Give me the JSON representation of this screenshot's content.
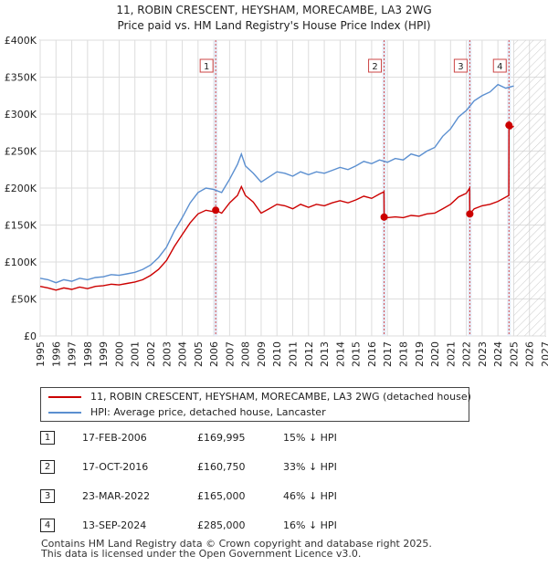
{
  "title_line1": "11, ROBIN CRESCENT, HEYSHAM, MORECAMBE, LA3 2WG",
  "title_line2": "Price paid vs. HM Land Registry's House Price Index (HPI)",
  "colors": {
    "property": "#cc0000",
    "hpi": "#5b8fd0",
    "marker": "#d34a4a"
  },
  "legend": {
    "property_label": "11, ROBIN CRESCENT, HEYSHAM, MORECAMBE, LA3 2WG (detached house)",
    "hpi_label": "HPI: Average price, detached house, Lancaster"
  },
  "sales": [
    {
      "num": "1",
      "date": "17-FEB-2006",
      "price": "£169,995",
      "hpi": "15% ↓ HPI"
    },
    {
      "num": "2",
      "date": "17-OCT-2016",
      "price": "£160,750",
      "hpi": "33% ↓ HPI"
    },
    {
      "num": "3",
      "date": "23-MAR-2022",
      "price": "£165,000",
      "hpi": "46% ↓ HPI"
    },
    {
      "num": "4",
      "date": "13-SEP-2024",
      "price": "£285,000",
      "hpi": "16% ↓ HPI"
    }
  ],
  "footer": {
    "line1": "Contains HM Land Registry data © Crown copyright and database right 2025.",
    "line2": "This data is licensed under the Open Government Licence v3.0."
  },
  "chart_data": {
    "type": "line",
    "title": "11, ROBIN CRESCENT, HEYSHAM, MORECAMBE, LA3 2WG — Price paid vs. HM Land Registry's House Price Index (HPI)",
    "xlabel": "",
    "ylabel": "",
    "xlim": [
      1995,
      2027
    ],
    "ylim": [
      0,
      400000
    ],
    "y_ticks": [
      0,
      50000,
      100000,
      150000,
      200000,
      250000,
      300000,
      350000,
      400000
    ],
    "y_tick_labels": [
      "£0",
      "£50K",
      "£100K",
      "£150K",
      "£200K",
      "£250K",
      "£300K",
      "£350K",
      "£400K"
    ],
    "x_ticks": [
      1995,
      1996,
      1997,
      1998,
      1999,
      2000,
      2001,
      2002,
      2003,
      2004,
      2005,
      2006,
      2007,
      2008,
      2009,
      2010,
      2011,
      2012,
      2013,
      2014,
      2015,
      2016,
      2017,
      2018,
      2019,
      2020,
      2021,
      2022,
      2023,
      2024,
      2025,
      2026,
      2027
    ],
    "grid": true,
    "forecast_from": 2025.0,
    "sales": [
      {
        "label": "1",
        "x": 2006.12,
        "y": 169995
      },
      {
        "label": "2",
        "x": 2016.79,
        "y": 160750
      },
      {
        "label": "3",
        "x": 2022.22,
        "y": 165000
      },
      {
        "label": "4",
        "x": 2024.7,
        "y": 285000
      }
    ],
    "series": [
      {
        "name": "HPI: Average price, detached house, Lancaster",
        "points": [
          [
            1995.0,
            78000
          ],
          [
            1995.5,
            76000
          ],
          [
            1996.0,
            72000
          ],
          [
            1996.5,
            76000
          ],
          [
            1997.0,
            74000
          ],
          [
            1997.5,
            78000
          ],
          [
            1998.0,
            76000
          ],
          [
            1998.5,
            79000
          ],
          [
            1999.0,
            80000
          ],
          [
            1999.5,
            83000
          ],
          [
            2000.0,
            82000
          ],
          [
            2000.5,
            84000
          ],
          [
            2001.0,
            86000
          ],
          [
            2001.5,
            90000
          ],
          [
            2002.0,
            96000
          ],
          [
            2002.5,
            106000
          ],
          [
            2003.0,
            120000
          ],
          [
            2003.5,
            142000
          ],
          [
            2004.0,
            160000
          ],
          [
            2004.5,
            180000
          ],
          [
            2005.0,
            194000
          ],
          [
            2005.5,
            200000
          ],
          [
            2006.0,
            198000
          ],
          [
            2006.5,
            194000
          ],
          [
            2007.0,
            212000
          ],
          [
            2007.5,
            232000
          ],
          [
            2007.75,
            246000
          ],
          [
            2008.0,
            230000
          ],
          [
            2008.5,
            220000
          ],
          [
            2009.0,
            208000
          ],
          [
            2009.5,
            215000
          ],
          [
            2010.0,
            222000
          ],
          [
            2010.5,
            220000
          ],
          [
            2011.0,
            216000
          ],
          [
            2011.5,
            222000
          ],
          [
            2012.0,
            218000
          ],
          [
            2012.5,
            222000
          ],
          [
            2013.0,
            220000
          ],
          [
            2013.5,
            224000
          ],
          [
            2014.0,
            228000
          ],
          [
            2014.5,
            225000
          ],
          [
            2015.0,
            230000
          ],
          [
            2015.5,
            236000
          ],
          [
            2016.0,
            233000
          ],
          [
            2016.5,
            238000
          ],
          [
            2017.0,
            235000
          ],
          [
            2017.5,
            240000
          ],
          [
            2018.0,
            238000
          ],
          [
            2018.5,
            246000
          ],
          [
            2019.0,
            243000
          ],
          [
            2019.5,
            250000
          ],
          [
            2020.0,
            255000
          ],
          [
            2020.5,
            270000
          ],
          [
            2021.0,
            280000
          ],
          [
            2021.5,
            296000
          ],
          [
            2022.0,
            305000
          ],
          [
            2022.5,
            318000
          ],
          [
            2023.0,
            325000
          ],
          [
            2023.5,
            330000
          ],
          [
            2024.0,
            340000
          ],
          [
            2024.5,
            335000
          ],
          [
            2025.0,
            338000
          ]
        ]
      },
      {
        "name": "11, ROBIN CRESCENT, HEYSHAM, MORECAMBE, LA3 2WG (detached house)",
        "points": [
          [
            1995.0,
            67000
          ],
          [
            1995.5,
            65000
          ],
          [
            1996.0,
            62000
          ],
          [
            1996.5,
            65000
          ],
          [
            1997.0,
            63000
          ],
          [
            1997.5,
            66000
          ],
          [
            1998.0,
            64000
          ],
          [
            1998.5,
            67000
          ],
          [
            1999.0,
            68000
          ],
          [
            1999.5,
            70000
          ],
          [
            2000.0,
            69000
          ],
          [
            2000.5,
            71000
          ],
          [
            2001.0,
            73000
          ],
          [
            2001.5,
            76000
          ],
          [
            2002.0,
            82000
          ],
          [
            2002.5,
            90000
          ],
          [
            2003.0,
            102000
          ],
          [
            2003.5,
            121000
          ],
          [
            2004.0,
            137000
          ],
          [
            2004.5,
            153000
          ],
          [
            2005.0,
            165000
          ],
          [
            2005.5,
            170000
          ],
          [
            2006.0,
            168000
          ],
          [
            2006.12,
            169995
          ],
          [
            2006.5,
            166000
          ],
          [
            2007.0,
            180000
          ],
          [
            2007.5,
            190000
          ],
          [
            2007.75,
            202000
          ],
          [
            2008.0,
            190000
          ],
          [
            2008.5,
            181000
          ],
          [
            2009.0,
            166000
          ],
          [
            2009.5,
            172000
          ],
          [
            2010.0,
            178000
          ],
          [
            2010.5,
            176000
          ],
          [
            2011.0,
            172000
          ],
          [
            2011.5,
            178000
          ],
          [
            2012.0,
            174000
          ],
          [
            2012.5,
            178000
          ],
          [
            2013.0,
            176000
          ],
          [
            2013.5,
            180000
          ],
          [
            2014.0,
            183000
          ],
          [
            2014.5,
            180000
          ],
          [
            2015.0,
            184000
          ],
          [
            2015.5,
            189000
          ],
          [
            2016.0,
            186000
          ],
          [
            2016.5,
            192000
          ],
          [
            2016.78,
            195000
          ],
          [
            2016.79,
            160750
          ],
          [
            2017.0,
            160000
          ],
          [
            2017.5,
            161000
          ],
          [
            2018.0,
            160000
          ],
          [
            2018.5,
            163000
          ],
          [
            2019.0,
            162000
          ],
          [
            2019.5,
            165000
          ],
          [
            2020.0,
            166000
          ],
          [
            2020.5,
            172000
          ],
          [
            2021.0,
            178000
          ],
          [
            2021.5,
            188000
          ],
          [
            2022.0,
            193000
          ],
          [
            2022.21,
            200000
          ],
          [
            2022.22,
            165000
          ],
          [
            2022.5,
            172000
          ],
          [
            2023.0,
            176000
          ],
          [
            2023.5,
            178000
          ],
          [
            2024.0,
            182000
          ],
          [
            2024.69,
            190000
          ],
          [
            2024.7,
            285000
          ],
          [
            2024.8,
            280000
          ],
          [
            2025.0,
            284000
          ]
        ]
      }
    ]
  }
}
